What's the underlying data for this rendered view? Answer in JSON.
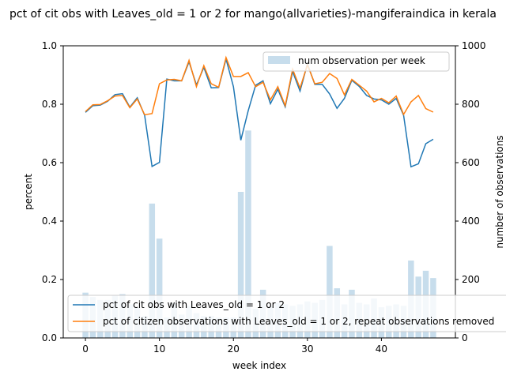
{
  "chart_data": {
    "type": "bar+line",
    "title": "pct of cit obs with Leaves_old = 1 or 2 for mango(allvarieties)-mangiferaindica in kerala",
    "xlabel": "week index",
    "ylabel": "percent",
    "y2label": "number of observations",
    "xlim": [
      -3,
      50
    ],
    "ylim": [
      0,
      1.0
    ],
    "y2lim": [
      0,
      1000
    ],
    "xticks": [
      "0",
      "10",
      "20",
      "30",
      "40"
    ],
    "yticks": [
      "0.0",
      "0.2",
      "0.4",
      "0.6",
      "0.8",
      "1.0"
    ],
    "y2ticks": [
      "0",
      "200",
      "400",
      "600",
      "800",
      "1000"
    ],
    "weeks": [
      0,
      1,
      2,
      3,
      4,
      5,
      6,
      7,
      8,
      9,
      10,
      11,
      12,
      13,
      14,
      15,
      16,
      17,
      18,
      19,
      20,
      21,
      22,
      23,
      24,
      25,
      26,
      27,
      28,
      29,
      30,
      31,
      32,
      33,
      34,
      35,
      36,
      37,
      38,
      39,
      40,
      41,
      42,
      43,
      44,
      45,
      46,
      47
    ],
    "bars": {
      "name": "num observation per week",
      "color": "#1f77b4",
      "values": [
        155,
        140,
        130,
        130,
        145,
        150,
        115,
        105,
        75,
        460,
        340,
        70,
        120,
        80,
        110,
        85,
        75,
        75,
        70,
        70,
        70,
        500,
        710,
        100,
        165,
        110,
        120,
        115,
        110,
        115,
        125,
        120,
        130,
        315,
        170,
        115,
        165,
        120,
        115,
        135,
        105,
        110,
        115,
        110,
        265,
        210,
        230,
        205
      ]
    },
    "series": [
      {
        "name": "pct of cit obs with Leaves_old = 1 or 2",
        "color": "#1f77b4",
        "values": [
          0.772,
          0.795,
          0.797,
          0.81,
          0.833,
          0.836,
          0.79,
          0.822,
          0.762,
          0.587,
          0.601,
          0.886,
          0.88,
          0.88,
          0.945,
          0.866,
          0.926,
          0.856,
          0.857,
          0.955,
          0.86,
          0.677,
          0.778,
          0.865,
          0.88,
          0.802,
          0.851,
          0.791,
          0.912,
          0.845,
          0.938,
          0.868,
          0.868,
          0.835,
          0.786,
          0.82,
          0.882,
          0.861,
          0.83,
          0.818,
          0.815,
          0.8,
          0.82,
          0.762,
          0.586,
          0.596,
          0.665,
          0.68
        ]
      },
      {
        "name": "pct of citizen observations with Leaves_old = 1 or 2, repeat observations removed",
        "color": "#ff7f0e",
        "values": [
          0.775,
          0.798,
          0.799,
          0.812,
          0.828,
          0.83,
          0.788,
          0.818,
          0.764,
          0.768,
          0.87,
          0.883,
          0.885,
          0.88,
          0.95,
          0.86,
          0.932,
          0.87,
          0.858,
          0.96,
          0.895,
          0.895,
          0.908,
          0.86,
          0.875,
          0.815,
          0.86,
          0.795,
          0.92,
          0.855,
          0.935,
          0.87,
          0.875,
          0.905,
          0.888,
          0.832,
          0.885,
          0.865,
          0.845,
          0.808,
          0.82,
          0.805,
          0.828,
          0.765,
          0.808,
          0.83,
          0.785,
          0.773
        ]
      }
    ]
  }
}
